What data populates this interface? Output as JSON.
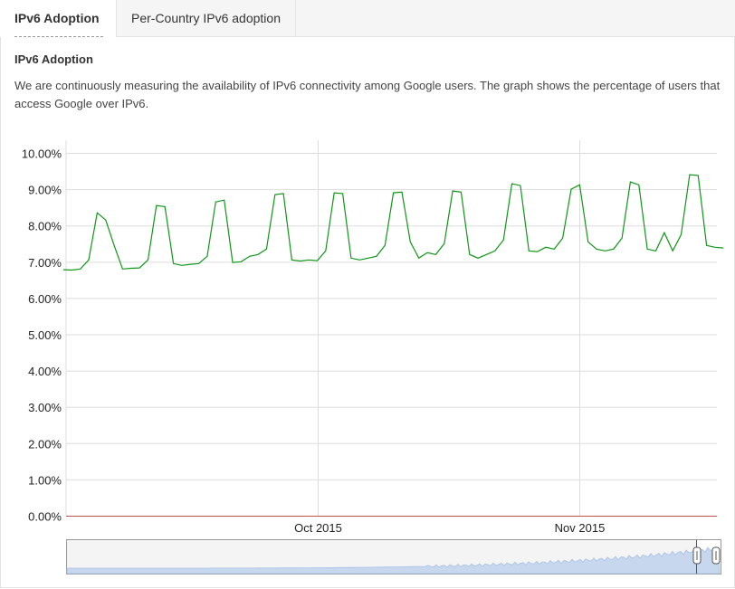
{
  "tabs": [
    {
      "label": "IPv6 Adoption",
      "active": true
    },
    {
      "label": "Per-Country IPv6 adoption",
      "active": false
    }
  ],
  "section": {
    "title": "IPv6 Adoption",
    "description": "We are continuously measuring the availability of IPv6 connectivity among Google users. The graph shows the percentage of users that access Google over IPv6."
  },
  "colors": {
    "line": "#109618",
    "grid": "#dddddd",
    "baseline": "#c0504d",
    "navigator": "#c6d7ee"
  },
  "chart_data": {
    "type": "line",
    "title": "",
    "xlabel": "",
    "ylabel": "",
    "ylim": [
      0,
      10
    ],
    "yticks": [
      "0.00%",
      "1.00%",
      "2.00%",
      "3.00%",
      "4.00%",
      "5.00%",
      "6.00%",
      "7.00%",
      "8.00%",
      "9.00%",
      "10.00%"
    ],
    "xticks": [
      {
        "label": "Oct 2015",
        "date": "2015-10-01"
      },
      {
        "label": "Nov 2015",
        "date": "2015-11-01"
      }
    ],
    "x_range": [
      "2015-09-01",
      "2015-11-18"
    ],
    "grid": true,
    "legend": "none",
    "series": [
      {
        "x": [
          "2015-09-01",
          "2015-09-02",
          "2015-09-03",
          "2015-09-04",
          "2015-09-05",
          "2015-09-06",
          "2015-09-07",
          "2015-09-08",
          "2015-09-09",
          "2015-09-10",
          "2015-09-11",
          "2015-09-12",
          "2015-09-13",
          "2015-09-14",
          "2015-09-15",
          "2015-09-16",
          "2015-09-17",
          "2015-09-18",
          "2015-09-19",
          "2015-09-20",
          "2015-09-21",
          "2015-09-22",
          "2015-09-23",
          "2015-09-24",
          "2015-09-25",
          "2015-09-26",
          "2015-09-27",
          "2015-09-28",
          "2015-09-29",
          "2015-09-30",
          "2015-10-01",
          "2015-10-02",
          "2015-10-03",
          "2015-10-04",
          "2015-10-05",
          "2015-10-06",
          "2015-10-07",
          "2015-10-08",
          "2015-10-09",
          "2015-10-10",
          "2015-10-11",
          "2015-10-12",
          "2015-10-13",
          "2015-10-14",
          "2015-10-15",
          "2015-10-16",
          "2015-10-17",
          "2015-10-18",
          "2015-10-19",
          "2015-10-20",
          "2015-10-21",
          "2015-10-22",
          "2015-10-23",
          "2015-10-24",
          "2015-10-25",
          "2015-10-26",
          "2015-10-27",
          "2015-10-28",
          "2015-10-29",
          "2015-10-30",
          "2015-10-31",
          "2015-11-01",
          "2015-11-02",
          "2015-11-03",
          "2015-11-04",
          "2015-11-05",
          "2015-11-06",
          "2015-11-07",
          "2015-11-08",
          "2015-11-09",
          "2015-11-10",
          "2015-11-11",
          "2015-11-12",
          "2015-11-13",
          "2015-11-14",
          "2015-11-15",
          "2015-11-16",
          "2015-11-17",
          "2015-11-18"
        ],
        "values": [
          6.78,
          6.77,
          6.8,
          7.05,
          8.35,
          8.15,
          7.45,
          6.8,
          6.82,
          6.83,
          7.05,
          8.55,
          8.52,
          6.95,
          6.9,
          6.93,
          6.95,
          7.15,
          8.65,
          8.7,
          6.98,
          7.0,
          7.15,
          7.2,
          7.35,
          8.85,
          8.88,
          7.05,
          7.02,
          7.05,
          7.03,
          7.3,
          8.9,
          8.88,
          7.1,
          7.05,
          7.1,
          7.15,
          7.45,
          8.9,
          8.92,
          7.55,
          7.1,
          7.25,
          7.2,
          7.5,
          8.95,
          8.92,
          7.2,
          7.1,
          7.2,
          7.3,
          7.6,
          9.15,
          9.1,
          7.3,
          7.28,
          7.4,
          7.35,
          7.65,
          9.0,
          9.12,
          7.55,
          7.35,
          7.3,
          7.35,
          7.65,
          9.2,
          9.12,
          7.35,
          7.3,
          7.8,
          7.3,
          7.75,
          9.4,
          9.38,
          7.45,
          7.4,
          7.38
        ]
      }
    ]
  }
}
